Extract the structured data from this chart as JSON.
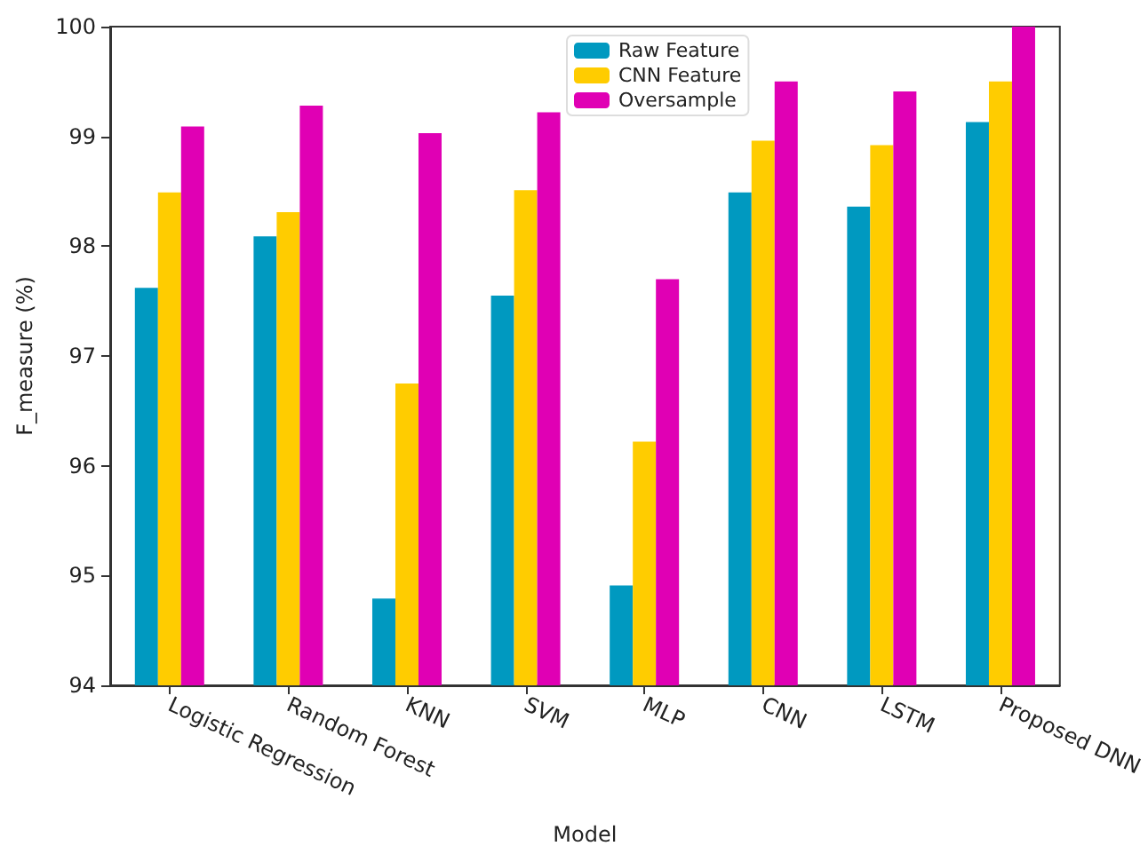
{
  "chart_data": {
    "type": "bar",
    "xlabel": "Model",
    "ylabel": "F_measure (%)",
    "categories": [
      "Logistic Regression",
      "Random Forest",
      "KNN",
      "SVM",
      "MLP",
      "CNN",
      "LSTM",
      "Proposed DNN"
    ],
    "series": [
      {
        "name": "Raw Feature",
        "color": "#0099c0",
        "values": [
          97.62,
          98.09,
          94.79,
          97.55,
          94.91,
          98.49,
          98.36,
          99.13
        ]
      },
      {
        "name": "CNN Feature",
        "color": "#ffcc00",
        "values": [
          98.49,
          98.31,
          96.75,
          98.51,
          96.22,
          98.96,
          98.92,
          99.5
        ]
      },
      {
        "name": "Oversample",
        "color": "#e000b4",
        "values": [
          99.09,
          99.28,
          99.03,
          99.22,
          97.7,
          99.5,
          99.41,
          100
        ]
      }
    ],
    "ylim": [
      94,
      100
    ],
    "yticks": [
      94,
      95,
      96,
      97,
      98,
      99,
      100
    ],
    "grid": false,
    "legend": "top"
  }
}
